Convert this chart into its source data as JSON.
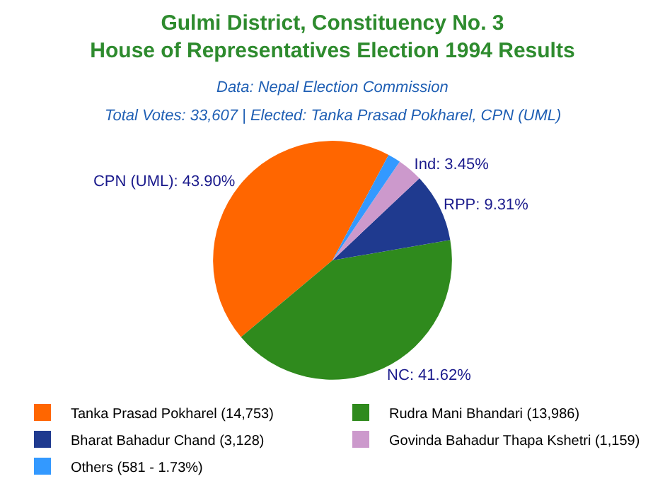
{
  "chart_data": {
    "type": "pie",
    "title": "Gulmi District, Constituency No. 3\nHouse of Representatives Election 1994 Results",
    "subtitle": "Data: Nepal Election Commission",
    "annotations": [
      "Total Votes: 33,607 | Elected: Tanka Prasad Pokharel, CPN (UML)"
    ],
    "categories": [
      "Tanka Prasad Pokharel (14,753)",
      "Rudra Mani Bhandari (13,986)",
      "Bharat Bahadur Chand (3,128)",
      "Govinda Bahadur Thapa Kshetri (1,159)",
      "Others (581 - 1.73%)"
    ],
    "values": [
      43.9,
      41.62,
      9.31,
      3.45,
      1.73
    ],
    "colors": [
      "#ff6600",
      "#2f8a1d",
      "#1f3a8f",
      "#cc99cc",
      "#3399ff"
    ],
    "value_labels": [
      "CPN (UML): 43.90%",
      "NC: 41.62%",
      "RPP: 9.31%",
      "Ind: 3.45%",
      null
    ],
    "legend": "bottom"
  }
}
